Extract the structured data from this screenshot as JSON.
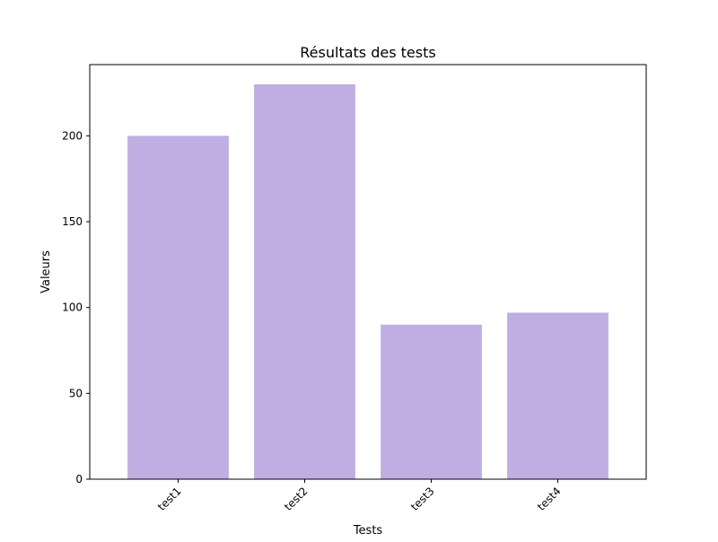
{
  "chart_data": {
    "type": "bar",
    "title": "Résultats des tests",
    "xlabel": "Tests",
    "ylabel": "Valeurs",
    "categories": [
      "test1",
      "test2",
      "test3",
      "test4"
    ],
    "values": [
      200,
      230,
      90,
      97
    ],
    "ylim": [
      0,
      241.5
    ],
    "yticks": [
      0,
      50,
      100,
      150,
      200
    ],
    "grid": false,
    "bar_color": "#c0aee2",
    "x_tick_rotation_deg": 45
  }
}
